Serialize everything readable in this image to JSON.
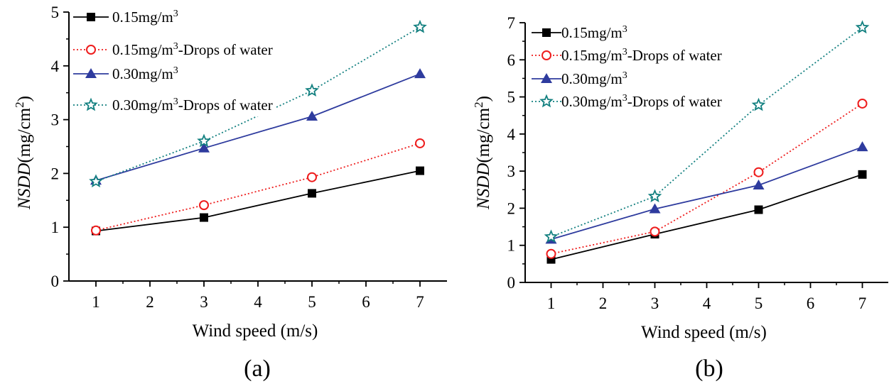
{
  "chart_data": [
    {
      "type": "line",
      "caption": "(a)",
      "xlabel": "Wind speed (m/s)",
      "ylabel": {
        "italic": "NSDD",
        "unit_main": "(mg/cm",
        "unit_sup": "2",
        "unit_close": ")"
      },
      "xlim": [
        0.5,
        7.5
      ],
      "ylim": [
        0,
        5
      ],
      "xticks": [
        "1",
        "2",
        "3",
        "4",
        "5",
        "6",
        "7"
      ],
      "yticks": [
        "0",
        "1",
        "2",
        "3",
        "4",
        "5"
      ],
      "x": [
        1,
        3,
        5,
        7
      ],
      "series": [
        {
          "name": "0.15mg/m3",
          "label_main": "0.15mg/m",
          "label_sup": "3",
          "label_tail": "",
          "values": [
            0.93,
            1.18,
            1.63,
            2.05
          ],
          "marker": "square",
          "color": "#000000",
          "dash": "solid"
        },
        {
          "name": "0.15mg/m3-Drops of water",
          "label_main": "0.15mg/m",
          "label_sup": "3",
          "label_tail": "-Drops of water",
          "values": [
            0.94,
            1.41,
            1.93,
            2.56
          ],
          "marker": "circle",
          "color": "#ee1c1c",
          "dash": "dotted"
        },
        {
          "name": "0.30mg/m3",
          "label_main": "0.30mg/m",
          "label_sup": "3",
          "label_tail": "",
          "values": [
            1.87,
            2.47,
            3.06,
            3.85
          ],
          "marker": "triangle",
          "color": "#2e3b9e",
          "dash": "solid"
        },
        {
          "name": "0.30mg/m3-Drops of water",
          "label_main": "0.30mg/m",
          "label_sup": "3",
          "label_tail": "-Drops of water",
          "values": [
            1.85,
            2.6,
            3.54,
            4.72
          ],
          "marker": "star",
          "color": "#138080",
          "dash": "dotted"
        }
      ]
    },
    {
      "type": "line",
      "caption": "(b)",
      "xlabel": "Wind speed (m/s)",
      "ylabel": {
        "italic": "NSDD",
        "unit_main": "(mg/cm",
        "unit_sup": "2",
        "unit_close": ")"
      },
      "xlim": [
        0.5,
        7.5
      ],
      "ylim": [
        0,
        7
      ],
      "xticks": [
        "1",
        "2",
        "3",
        "4",
        "5",
        "6",
        "7"
      ],
      "yticks": [
        "0",
        "1",
        "2",
        "3",
        "4",
        "5",
        "6",
        "7"
      ],
      "x": [
        1,
        3,
        5,
        7
      ],
      "series": [
        {
          "name": "0.15mg/m3",
          "label_main": "0.15mg/m",
          "label_sup": "3",
          "label_tail": "",
          "values": [
            0.62,
            1.3,
            1.96,
            2.91
          ],
          "marker": "square",
          "color": "#000000",
          "dash": "solid"
        },
        {
          "name": "0.15mg/m3-Drops of water",
          "label_main": "0.15mg/m",
          "label_sup": "3",
          "label_tail": "-Drops of water",
          "values": [
            0.77,
            1.37,
            2.97,
            4.82
          ],
          "marker": "circle",
          "color": "#ee1c1c",
          "dash": "dotted"
        },
        {
          "name": "0.30mg/m3",
          "label_main": "0.30mg/m",
          "label_sup": "3",
          "label_tail": "",
          "values": [
            1.16,
            1.98,
            2.62,
            3.65
          ],
          "marker": "triangle",
          "color": "#2e3b9e",
          "dash": "solid"
        },
        {
          "name": "0.30mg/m3-Drops of water",
          "label_main": "0.30mg/m",
          "label_sup": "3",
          "label_tail": "-Drops of water",
          "values": [
            1.23,
            2.32,
            4.78,
            6.87
          ],
          "marker": "star",
          "color": "#138080",
          "dash": "dotted"
        }
      ]
    }
  ]
}
